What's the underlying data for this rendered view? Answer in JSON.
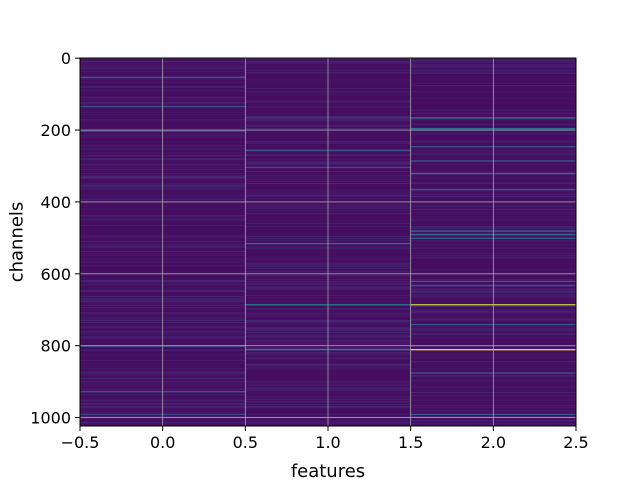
{
  "chart_data": {
    "type": "heatmap",
    "title": "",
    "xlabel": "features",
    "ylabel": "channels",
    "xlim": [
      -0.5,
      2.5
    ],
    "ylim": [
      1023.5,
      -0.5
    ],
    "y_inverted": true,
    "grid": true,
    "colormap": "viridis",
    "colorbar": false,
    "x_ticks": [
      "−0.5",
      "0.0",
      "0.5",
      "1.0",
      "1.5",
      "2.0",
      "2.5"
    ],
    "y_ticks": [
      "0",
      "200",
      "400",
      "600",
      "800",
      "1000"
    ],
    "columns": [
      0,
      1,
      2
    ],
    "channels": 1024,
    "background_level": 0.05,
    "notable_rows": [
      {
        "column": 0,
        "channel": 52,
        "level": 0.35
      },
      {
        "column": 0,
        "channel": 133,
        "level": 0.3
      },
      {
        "column": 0,
        "channel": 202,
        "level": 0.28
      },
      {
        "column": 0,
        "channel": 330,
        "level": 0.2
      },
      {
        "column": 0,
        "channel": 800,
        "level": 0.4
      },
      {
        "column": 0,
        "channel": 927,
        "level": 0.42
      },
      {
        "column": 0,
        "channel": 990,
        "level": 0.25
      },
      {
        "column": 1,
        "channel": 165,
        "level": 0.25
      },
      {
        "column": 1,
        "channel": 255,
        "level": 0.4
      },
      {
        "column": 1,
        "channel": 303,
        "level": 0.3
      },
      {
        "column": 1,
        "channel": 515,
        "level": 0.45
      },
      {
        "column": 1,
        "channel": 685,
        "level": 0.55
      },
      {
        "column": 1,
        "channel": 810,
        "level": 0.58
      },
      {
        "column": 2,
        "channel": 165,
        "level": 0.55
      },
      {
        "column": 2,
        "channel": 195,
        "level": 0.5
      },
      {
        "column": 2,
        "channel": 245,
        "level": 0.35
      },
      {
        "column": 2,
        "channel": 285,
        "level": 0.4
      },
      {
        "column": 2,
        "channel": 320,
        "level": 0.45
      },
      {
        "column": 2,
        "channel": 365,
        "level": 0.4
      },
      {
        "column": 2,
        "channel": 480,
        "level": 0.5
      },
      {
        "column": 2,
        "channel": 490,
        "level": 0.45
      },
      {
        "column": 2,
        "channel": 500,
        "level": 0.4
      },
      {
        "column": 2,
        "channel": 620,
        "level": 0.4
      },
      {
        "column": 2,
        "channel": 632,
        "level": 0.35
      },
      {
        "column": 2,
        "channel": 685,
        "level": 0.95
      },
      {
        "column": 2,
        "channel": 740,
        "level": 0.35
      },
      {
        "column": 2,
        "channel": 810,
        "level": 1.0
      },
      {
        "column": 2,
        "channel": 875,
        "level": 0.4
      },
      {
        "column": 2,
        "channel": 990,
        "level": 0.35
      }
    ]
  }
}
